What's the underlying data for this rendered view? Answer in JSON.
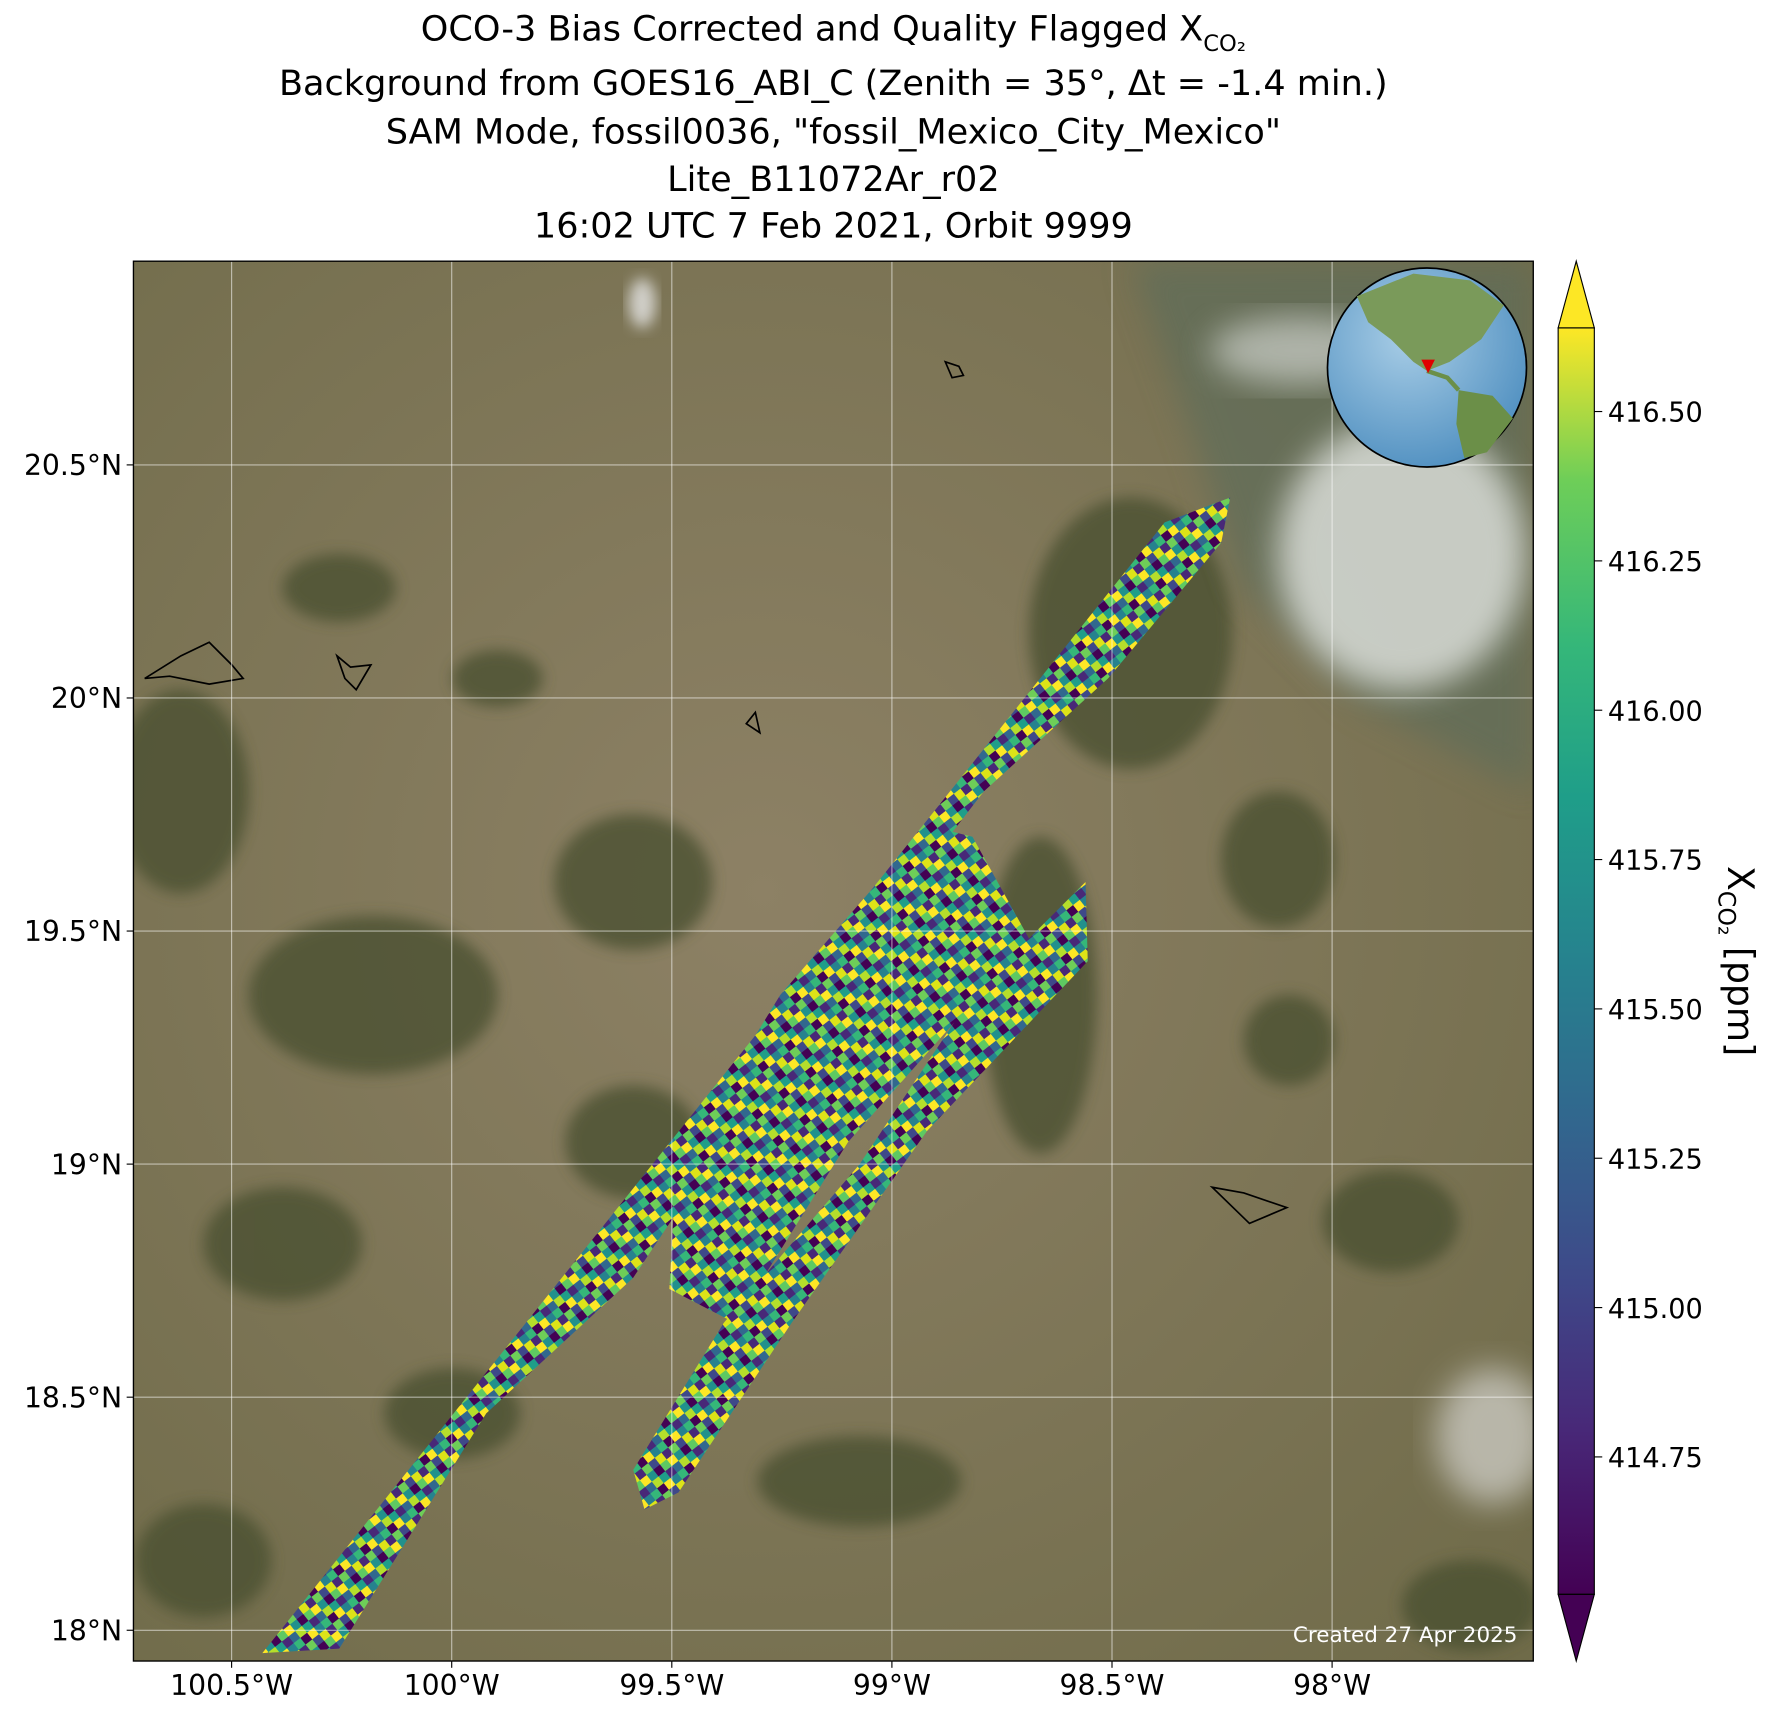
{
  "chart_data": {
    "type": "map",
    "title": "OCO-3 Bias Corrected and Quality Flagged X",
    "title_subscript": "CO₂",
    "subtitle_lines": [
      "Background from GOES16_ABI_C (Zenith = 35$^\\circ$, Δt = -1.4 min.)",
      "SAM Mode, fossil0036, \"fossil_Mexico_City_Mexico\"",
      "Lite_B11072Ar_r02",
      "16:02 UTC 7 Feb 2021, Orbit 9999"
    ],
    "xlim": [
      -100.723,
      -97.543
    ],
    "ylim": [
      17.934,
      20.937
    ],
    "xticks": [
      {
        "value": -100.5,
        "label": "100.5°W"
      },
      {
        "value": -100,
        "label": "100°W"
      },
      {
        "value": -99.5,
        "label": "99.5°W"
      },
      {
        "value": -99,
        "label": "99°W"
      },
      {
        "value": -98.5,
        "label": "98.5°W"
      },
      {
        "value": -98,
        "label": "98°W"
      }
    ],
    "yticks": [
      {
        "value": 18,
        "label": "18°N"
      },
      {
        "value": 18.5,
        "label": "18.5°N"
      },
      {
        "value": 19,
        "label": "19°N"
      },
      {
        "value": 19.5,
        "label": "19.5°N"
      },
      {
        "value": 20,
        "label": "20°N"
      },
      {
        "value": 20.5,
        "label": "20.5°N"
      }
    ],
    "grid": true,
    "colorbar": {
      "colormap": "viridis",
      "extend": "both",
      "clim": [
        414.52,
        416.64
      ],
      "ticks": [
        414.75,
        {
          "value": 415,
          "label": "415.00"
        },
        415.25,
        {
          "value": 415.5,
          "label": "415.50"
        },
        415.75,
        {
          "value": 416,
          "label": "416.00"
        },
        416.25,
        {
          "value": 416.5,
          "label": "416.50"
        }
      ],
      "label": "X",
      "label_subscript": "CO₂",
      "label_suffix": "[ppm]"
    },
    "annotation": "Created 27 Apr 2025"
  }
}
